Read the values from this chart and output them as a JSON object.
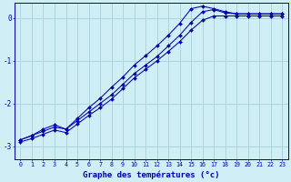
{
  "xlabel": "Graphe des températures (°c)",
  "xlim": [
    -0.5,
    23.5
  ],
  "ylim": [
    -3.3,
    0.35
  ],
  "xticks": [
    0,
    1,
    2,
    3,
    4,
    5,
    6,
    7,
    8,
    9,
    10,
    11,
    12,
    13,
    14,
    15,
    16,
    17,
    18,
    19,
    20,
    21,
    22,
    23
  ],
  "yticks": [
    0,
    -1,
    -2,
    -3
  ],
  "background_color": "#d0eef5",
  "line_color": "#0000bb",
  "grid_color": "#aad0d8",
  "line1_x": [
    0,
    1,
    2,
    3,
    4,
    5,
    6,
    7,
    8,
    9,
    10,
    11,
    12,
    13,
    14,
    15,
    16,
    17,
    18,
    19,
    20,
    21,
    22,
    23
  ],
  "line1_y": [
    -2.85,
    -2.75,
    -2.65,
    -2.55,
    -2.6,
    -2.4,
    -2.2,
    -2.0,
    -1.8,
    -1.55,
    -1.3,
    -1.1,
    -0.9,
    -0.65,
    -0.4,
    -0.1,
    0.15,
    0.2,
    0.12,
    0.1,
    0.1,
    0.1,
    0.1,
    0.1
  ],
  "line2_x": [
    0,
    1,
    2,
    3,
    4,
    5,
    6,
    7,
    8,
    9,
    10,
    11,
    12,
    13,
    14,
    15,
    16,
    17,
    18,
    19,
    20,
    21,
    22,
    23
  ],
  "line2_y": [
    -2.85,
    -2.75,
    -2.6,
    -2.5,
    -2.6,
    -2.35,
    -2.1,
    -1.88,
    -1.62,
    -1.38,
    -1.1,
    -0.88,
    -0.65,
    -0.4,
    -0.12,
    0.22,
    0.28,
    0.22,
    0.15,
    0.1,
    0.1,
    0.1,
    0.1,
    0.1
  ],
  "line3_x": [
    0,
    1,
    2,
    3,
    4,
    5,
    6,
    7,
    8,
    9,
    10,
    11,
    12,
    13,
    14,
    15,
    16,
    17,
    18,
    19,
    20,
    21,
    22,
    23
  ],
  "line3_y": [
    -2.9,
    -2.82,
    -2.72,
    -2.62,
    -2.68,
    -2.48,
    -2.28,
    -2.1,
    -1.9,
    -1.65,
    -1.4,
    -1.2,
    -1.0,
    -0.78,
    -0.55,
    -0.28,
    -0.05,
    0.05,
    0.05,
    0.05,
    0.05,
    0.05,
    0.05,
    0.05
  ]
}
